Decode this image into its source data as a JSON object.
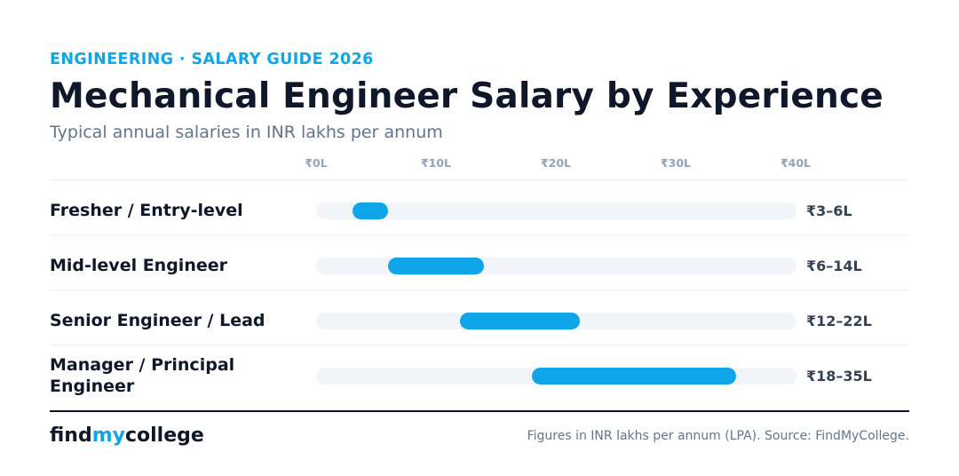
{
  "header": {
    "eyebrow": "ENGINEERING · SALARY GUIDE 2026",
    "title": "Mechanical Engineer Salary by Experience",
    "subtitle": "Typical annual salaries in INR lakhs per annum"
  },
  "chart_data": {
    "type": "bar",
    "subtype": "range",
    "title": "Mechanical Engineer Salary by Experience",
    "subtitle": "Typical annual salaries in INR lakhs per annum",
    "x_axis": {
      "min": 0,
      "max": 40,
      "ticks": [
        0,
        10,
        20,
        30,
        40
      ],
      "tick_labels": [
        "₹0L",
        "₹10L",
        "₹20L",
        "₹30L",
        "₹40L"
      ]
    },
    "grid": false,
    "legend": "none",
    "bar_color": "#0ea5e9",
    "track_color": "#f1f4f8",
    "categories": [
      "Fresher / Entry-level",
      "Mid-level Engineer",
      "Senior Engineer / Lead",
      "Manager / Principal Engineer"
    ],
    "ranges": [
      {
        "low": 3,
        "high": 6,
        "label": "₹3–6L"
      },
      {
        "low": 6,
        "high": 14,
        "label": "₹6–14L"
      },
      {
        "low": 12,
        "high": 22,
        "label": "₹12–22L"
      },
      {
        "low": 18,
        "high": 35,
        "label": "₹18–35L"
      }
    ]
  },
  "footer": {
    "logo_part1": "find",
    "logo_part2": "my",
    "logo_part3": "college",
    "source": "Figures in INR lakhs per annum (LPA). Source: FindMyCollege."
  }
}
